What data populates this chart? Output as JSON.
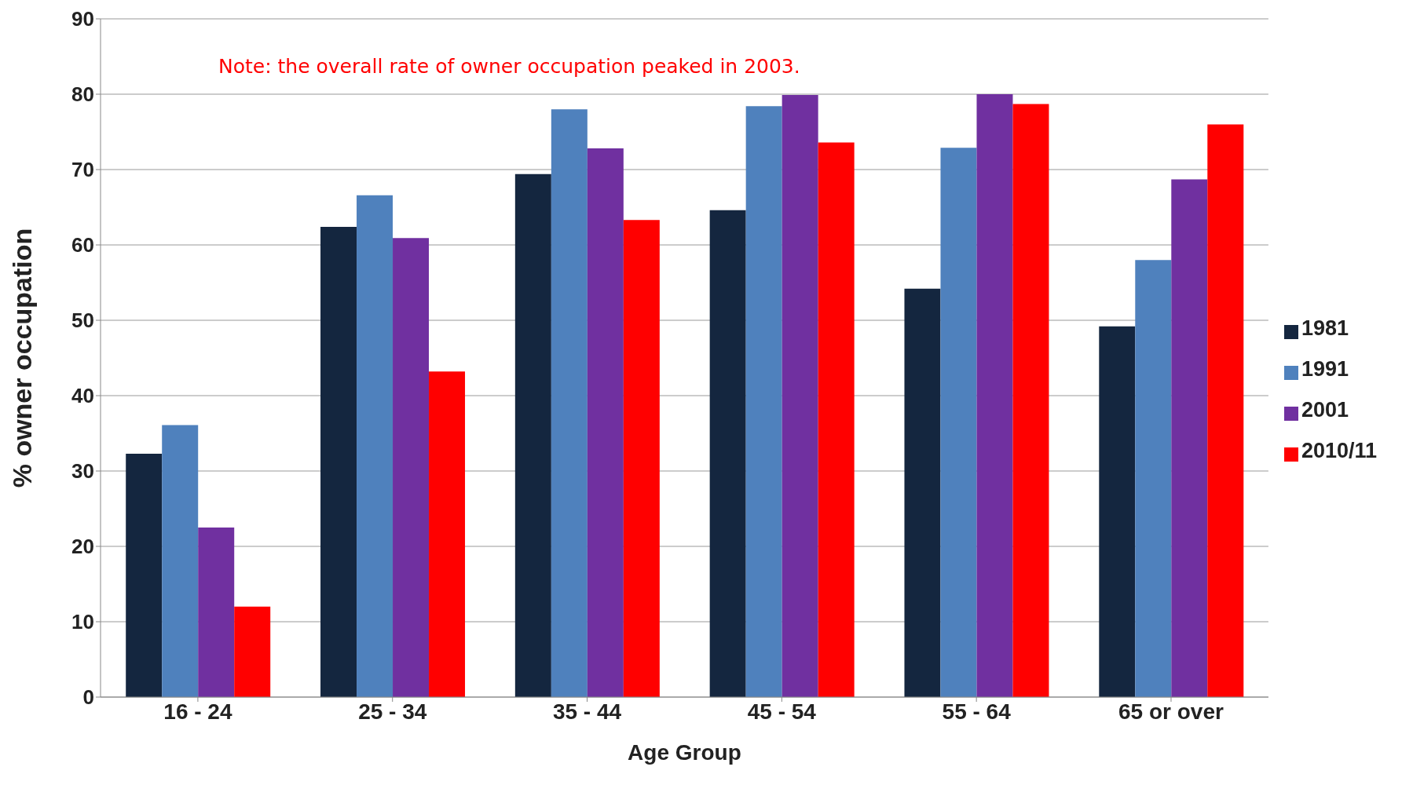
{
  "chart_data": {
    "type": "bar",
    "xlabel": "Age Group",
    "ylabel": "% owner occupation",
    "categories": [
      "16 - 24",
      "25 - 34",
      "35 - 44",
      "45 - 54",
      "55 - 64",
      "65 or over"
    ],
    "series": [
      {
        "name": "1981",
        "color": "#14263f",
        "values": [
          32.3,
          62.4,
          69.4,
          64.6,
          54.2,
          49.2
        ]
      },
      {
        "name": "1991",
        "color": "#4f81bd",
        "values": [
          36.1,
          66.6,
          78.0,
          78.4,
          72.9,
          58.0
        ]
      },
      {
        "name": "2001",
        "color": "#7030a0",
        "values": [
          22.5,
          60.9,
          72.8,
          79.9,
          80.0,
          68.7
        ]
      },
      {
        "name": "2010/11",
        "color": "#ff0000",
        "values": [
          12.0,
          43.2,
          63.3,
          73.6,
          78.7,
          76.0
        ]
      }
    ],
    "annotations": [
      "Note: the overall rate of owner occupation peaked in 2003."
    ],
    "ylim": [
      0,
      90
    ],
    "yticks": [
      0,
      10,
      20,
      30,
      40,
      50,
      60,
      70,
      80,
      90
    ],
    "grid": "y",
    "legend": "right"
  }
}
